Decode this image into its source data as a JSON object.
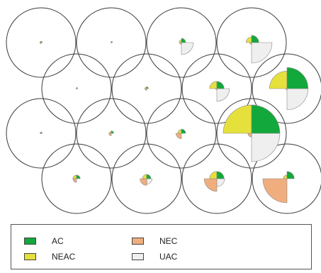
{
  "colors": {
    "AC": "#13a83c",
    "NEAC": "#e6e03c",
    "NEC": "#f0ae7e",
    "UAC": "#efefef",
    "stroke": "#3a3a3a",
    "slice_stroke": "#8a8a8a"
  },
  "legend": [
    {
      "key": "AC",
      "label": "AC"
    },
    {
      "key": "NEAC",
      "label": "NEAC"
    },
    {
      "key": "NEC",
      "label": "NEC"
    },
    {
      "key": "UAC",
      "label": "UAC"
    }
  ],
  "grid": {
    "rows": [
      {
        "count": 4,
        "cells": [
          {
            "AC": 0.1,
            "NEAC": 0.1,
            "NEC": 0.1,
            "UAC": 0
          },
          {
            "AC": 0.1,
            "NEAC": 0,
            "NEC": 0.05,
            "UAC": 0
          },
          {
            "AC": 0.35,
            "NEAC": 0.2,
            "NEC": 0.15,
            "UAC": 1
          },
          {
            "AC": 0.6,
            "NEAC": 0.45,
            "NEC": 0.15,
            "UAC": 1.7
          }
        ]
      },
      {
        "count": 4,
        "cells": [
          {
            "AC": 0.1,
            "NEAC": 0,
            "NEC": 0.05,
            "UAC": 0
          },
          {
            "AC": 0.15,
            "NEAC": 0.15,
            "NEC": 0.15,
            "UAC": 0
          },
          {
            "AC": 0.6,
            "NEAC": 0.6,
            "NEC": 0.1,
            "UAC": 1.05
          },
          {
            "AC": 1.75,
            "NEAC": 1.45,
            "NEC": 0.1,
            "UAC": 1.75
          }
        ]
      },
      {
        "count": 4,
        "cells": [
          {
            "AC": 0.1,
            "NEAC": 0.1,
            "NEC": 0.05,
            "UAC": 0
          },
          {
            "AC": 0.2,
            "NEAC": 0.15,
            "NEC": 0.2,
            "UAC": 0
          },
          {
            "AC": 0.35,
            "NEAC": 0.3,
            "NEC": 0.45,
            "UAC": 0
          },
          {
            "AC": 2.35,
            "NEAC": 2.35,
            "NEC": 0.3,
            "UAC": 2.35
          }
        ]
      },
      {
        "count": 4,
        "cells": [
          {
            "AC": 0.3,
            "NEAC": 0.3,
            "NEC": 0.3,
            "UAC": 0
          },
          {
            "AC": 0.35,
            "NEAC": 0.35,
            "NEC": 0.55,
            "UAC": 0.45
          },
          {
            "AC": 0.6,
            "NEAC": 0.6,
            "NEC": 1.05,
            "UAC": 0.65
          },
          {
            "AC": 0.6,
            "NEAC": 0.3,
            "NEC": 2.0,
            "UAC": 0
          }
        ]
      }
    ]
  }
}
